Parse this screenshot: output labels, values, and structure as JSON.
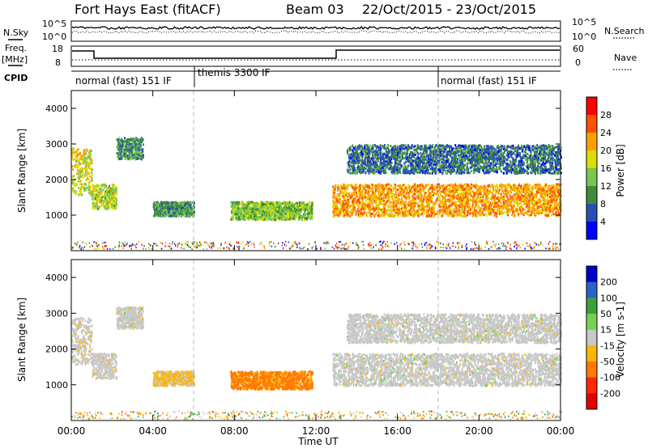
{
  "header": {
    "site": "Fort Hays East (fitACF)",
    "beam": "Beam 03",
    "date_range": "22/Oct/2015 - 23/Oct/2015"
  },
  "left_labels": {
    "nsky": "N.Sky",
    "freq": "Freq.",
    "freq_unit": "[MHz]",
    "cpid": "CPID"
  },
  "right_labels": {
    "nsearch": "N.Search",
    "nave": "Nave"
  },
  "noise_panel": {
    "left_ticks": [
      "10^5",
      "10^0"
    ],
    "right_ticks": [
      "10^5",
      "10^0"
    ]
  },
  "freq_panel": {
    "left_ticks": [
      "18",
      "8"
    ],
    "right_ticks": [
      "60",
      "0"
    ]
  },
  "cpid_segments": [
    {
      "label": "normal (fast) 151 IF",
      "start_h": 0,
      "end_h": 6
    },
    {
      "label": "themis 3300 IF",
      "start_h": 6,
      "end_h": 18
    },
    {
      "label": "normal (fast) 151 IF",
      "start_h": 18,
      "end_h": 24
    }
  ],
  "power_panel": {
    "ylabel": "Slant Range [km]",
    "yticks": [
      "1000",
      "2000",
      "3000",
      "4000"
    ],
    "colorbar_label": "Power [dB]",
    "colorbar_ticks": [
      "4",
      "8",
      "12",
      "16",
      "20",
      "24",
      "28"
    ],
    "colors": [
      "#0000ff",
      "#2850b4",
      "#3c8c3c",
      "#78c850",
      "#dcdc00",
      "#ffa000",
      "#ff5000",
      "#ff0000"
    ]
  },
  "velocity_panel": {
    "ylabel": "Slant Range [km]",
    "yticks": [
      "1000",
      "2000",
      "3000",
      "4000"
    ],
    "colorbar_label": "Velocity [m s-1]",
    "colorbar_ticks": [
      "200",
      "100",
      "50",
      "15",
      "-15",
      "-50",
      "-100",
      "-200"
    ],
    "colors": [
      "#0000c8",
      "#2864c8",
      "#3ca03c",
      "#78d250",
      "#c8c8c8",
      "#ffb400",
      "#ff7800",
      "#ff2800",
      "#e60000"
    ]
  },
  "time_axis": {
    "ticks": [
      "00:00",
      "04:00",
      "08:00",
      "12:00",
      "16:00",
      "20:00",
      "00:00"
    ],
    "xlabel": "Time UT"
  },
  "chart_data": {
    "type": "heatmap",
    "title": "Fort Hays East (fitACF)  Beam 03  22/Oct/2015 - 23/Oct/2015",
    "x": "Time UT (hours)",
    "xlim": [
      0,
      24
    ],
    "ylim": [
      0,
      4500
    ],
    "ylabel": "Slant Range [km]",
    "power_colorbar": {
      "label": "Power [dB]",
      "range": [
        0,
        32
      ]
    },
    "velocity_colorbar": {
      "label": "Velocity [m s-1]",
      "range": [
        -250,
        250
      ]
    },
    "scatter_regions": [
      {
        "t_start": 0.0,
        "t_end": 1.0,
        "range_km": [
          1600,
          2900
        ],
        "power_db": 18,
        "velocity": -10
      },
      {
        "t_start": 1.0,
        "t_end": 2.2,
        "range_km": [
          1200,
          1900
        ],
        "power_db": 16,
        "velocity": -5
      },
      {
        "t_start": 2.2,
        "t_end": 3.5,
        "range_km": [
          2600,
          3200
        ],
        "power_db": 10,
        "velocity": 0
      },
      {
        "t_start": 4.0,
        "t_end": 6.0,
        "range_km": [
          1000,
          1400
        ],
        "power_db": 10,
        "velocity": -20
      },
      {
        "t_start": 7.8,
        "t_end": 11.8,
        "range_km": [
          900,
          1400
        ],
        "power_db": 14,
        "velocity": -60
      },
      {
        "t_start": 12.8,
        "t_end": 24.0,
        "range_km": [
          1000,
          1900
        ],
        "power_db": 22,
        "velocity": 0
      },
      {
        "t_start": 13.5,
        "t_end": 24.0,
        "range_km": [
          2200,
          3000
        ],
        "power_db": 8,
        "velocity": 0
      }
    ]
  }
}
